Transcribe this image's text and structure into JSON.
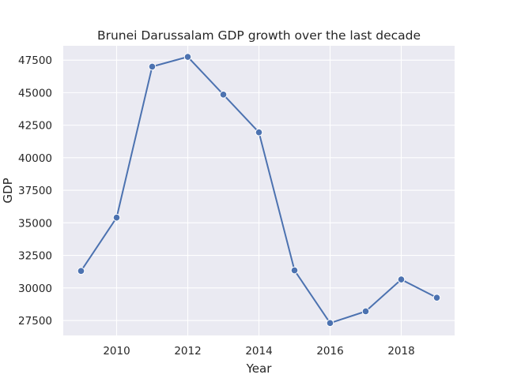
{
  "chart_data": {
    "type": "line",
    "title": "Brunei Darussalam GDP growth over the last decade",
    "xlabel": "Year",
    "ylabel": "GDP",
    "x": [
      2009,
      2010,
      2011,
      2012,
      2013,
      2014,
      2015,
      2016,
      2017,
      2018,
      2019
    ],
    "series": [
      {
        "values": [
          31300,
          35400,
          47000,
          47750,
          44850,
          41950,
          31350,
          27300,
          28200,
          30650,
          29250
        ]
      }
    ],
    "xlim": [
      2008.5,
      2019.5
    ],
    "ylim": [
      26350,
      48600
    ],
    "xticks": [
      2010,
      2012,
      2014,
      2016,
      2018
    ],
    "yticks": [
      27500,
      30000,
      32500,
      35000,
      37500,
      40000,
      42500,
      45000,
      47500
    ],
    "grid": true,
    "legend": "none",
    "colors": {
      "background": "#eaeaf2",
      "grid": "#ffffff",
      "line": "#4c72b0",
      "marker_edge": "#ffffff",
      "text": "#262626"
    }
  }
}
